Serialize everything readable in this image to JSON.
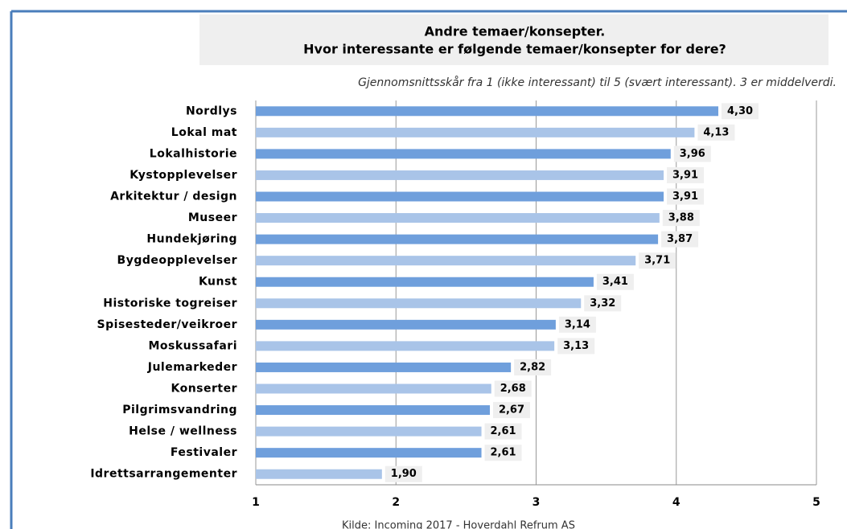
{
  "chart_data": {
    "type": "bar",
    "orientation": "horizontal",
    "title": [
      "Andre temaer/konsepter.",
      "Hvor interessante er følgende temaer/konsepter for dere?"
    ],
    "subtitle": "Gjennomsnittsskår fra 1 (ikke interessant) til 5 (svært interessant). 3 er middelverdi.",
    "source": "Kilde: Incoming 2017 - Hoverdahl Refrum AS",
    "categories": [
      "Nordlys",
      "Lokal mat",
      "Lokalhistorie",
      "Kystopplevelser",
      "Arkitektur / design",
      "Museer",
      "Hundekjøring",
      "Bygdeopplevelser",
      "Kunst",
      "Historiske togreiser",
      "Spisesteder/veikroer",
      "Moskussafari",
      "Julemarkeder",
      "Konserter",
      "Pilgrimsvandring",
      "Helse / wellness",
      "Festivaler",
      "Idrettsarrangementer"
    ],
    "values": [
      4.3,
      4.13,
      3.96,
      3.91,
      3.91,
      3.88,
      3.87,
      3.71,
      3.41,
      3.32,
      3.14,
      3.13,
      2.82,
      2.68,
      2.67,
      2.61,
      2.61,
      1.9
    ],
    "value_labels": [
      "4,30",
      "4,13",
      "3,96",
      "3,91",
      "3,91",
      "3,88",
      "3,87",
      "3,71",
      "3,41",
      "3,32",
      "3,14",
      "3,13",
      "2,82",
      "2,68",
      "2,67",
      "2,61",
      "2,61",
      "1,90"
    ],
    "colors": [
      "#6f9fdc",
      "#a9c4e8"
    ],
    "xlim": [
      1,
      5
    ],
    "xticks": [
      1,
      2,
      3,
      4,
      5
    ],
    "grid": true
  }
}
